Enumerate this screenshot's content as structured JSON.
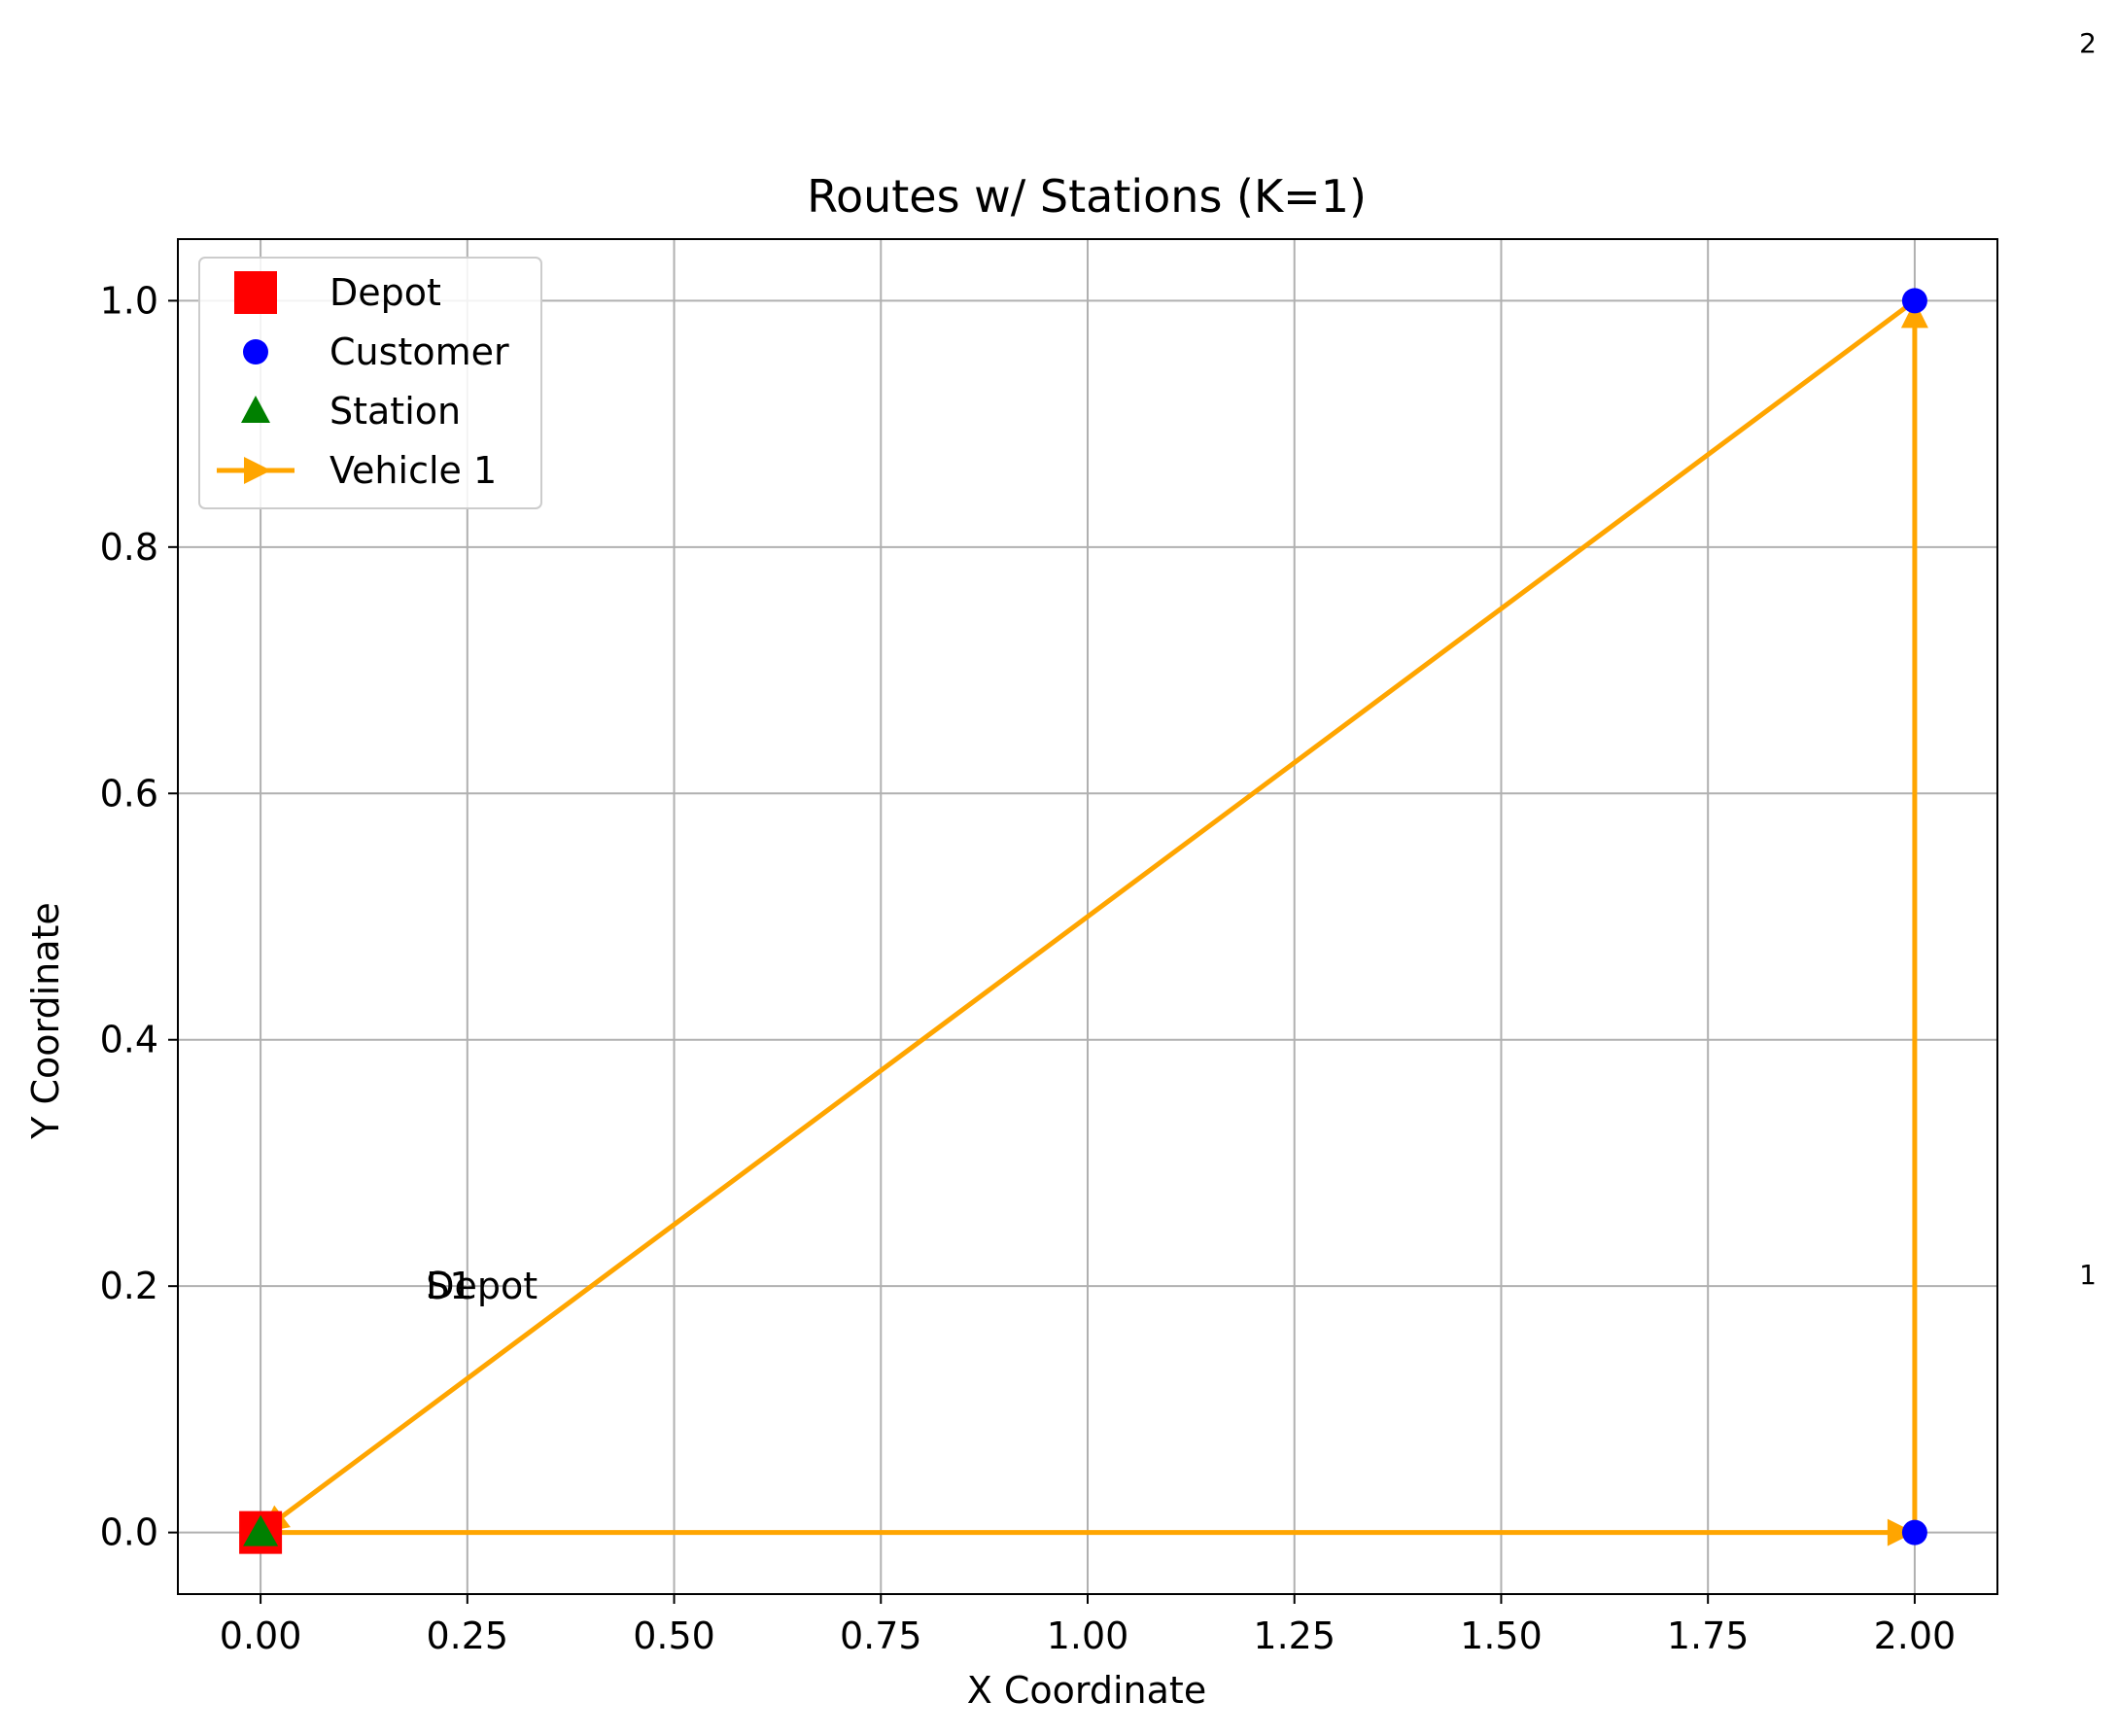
{
  "chart_data": {
    "type": "scatter",
    "title": "Routes w/ Stations (K=1)",
    "xlabel": "X Coordinate",
    "ylabel": "Y Coordinate",
    "xlim": [
      -0.1,
      2.1
    ],
    "ylim": [
      -0.05,
      1.05
    ],
    "xticks": [
      "0.00",
      "0.25",
      "0.50",
      "0.75",
      "1.00",
      "1.25",
      "1.50",
      "1.75",
      "2.00"
    ],
    "xtick_values": [
      0,
      0.25,
      0.5,
      0.75,
      1.0,
      1.25,
      1.5,
      1.75,
      2.0
    ],
    "yticks": [
      "0.0",
      "0.2",
      "0.4",
      "0.6",
      "0.8",
      "1.0"
    ],
    "ytick_values": [
      0,
      0.2,
      0.4,
      0.6,
      0.8,
      1.0
    ],
    "grid": true,
    "legend_position": "top-left",
    "legend": [
      {
        "label": "Depot",
        "marker": "square",
        "color": "#ff0000"
      },
      {
        "label": "Customer",
        "marker": "circle",
        "color": "#0000ff"
      },
      {
        "label": "Station",
        "marker": "triangle",
        "color": "#008000"
      },
      {
        "label": "Vehicle 1",
        "marker": "line-arrow",
        "color": "#ffa500"
      }
    ],
    "depot": {
      "x": 0,
      "y": 0,
      "color": "#ff0000"
    },
    "customers": [
      {
        "x": 2.0,
        "y": 0.0
      },
      {
        "x": 2.0,
        "y": 1.0
      }
    ],
    "customer_color": "#0000ff",
    "stations": [
      {
        "x": 0.0,
        "y": 0.0
      }
    ],
    "station_color": "#008000",
    "routes": [
      {
        "color": "#ffa500",
        "points": [
          [
            0,
            0
          ],
          [
            2.0,
            0.0
          ],
          [
            2.0,
            1.0
          ],
          [
            0,
            0
          ]
        ]
      }
    ],
    "annotations": [
      {
        "text": "S1",
        "x": 0.2,
        "y": 0.2
      },
      {
        "text": "Depot",
        "x": 0.2,
        "y": 0.2
      }
    ],
    "edge_labels": [
      "2",
      "1"
    ]
  }
}
